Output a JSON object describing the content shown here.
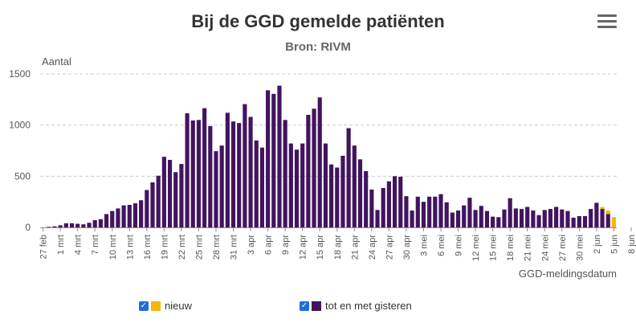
{
  "header": {
    "title": "Bij de GGD gemelde patiënten",
    "subtitle": "Bron: RIVM",
    "menu_icon": "hamburger-menu-icon"
  },
  "colors": {
    "nieuw": "#f6b60b",
    "tot_en_met_gisteren": "#42145f",
    "grid": "#cccccc",
    "checkbox": "#1e6fd9"
  },
  "legend": [
    {
      "label": "nieuw",
      "color": "#f6b60b",
      "checked": true
    },
    {
      "label": "tot en met gisteren",
      "color": "#42145f",
      "checked": true
    }
  ],
  "chart_data": {
    "type": "bar",
    "stacked": true,
    "title": "Bij de GGD gemelde patiënten",
    "subtitle": "Bron: RIVM",
    "ylabel": "Aantal",
    "xlabel": "GGD-meldingsdatum",
    "ylim": [
      0,
      1500
    ],
    "yticks": [
      0,
      500,
      1000,
      1500
    ],
    "grid": true,
    "legend_position": "bottom",
    "x_tick_labels": [
      "27 feb",
      "1 mrt",
      "4 mrt",
      "7 mrt",
      "10 mrt",
      "13 mrt",
      "16 mrt",
      "19 mrt",
      "22 mrt",
      "25 mrt",
      "28 mrt",
      "31 mrt",
      "3 apr",
      "6 apr",
      "9 apr",
      "12 apr",
      "15 apr",
      "18 apr",
      "21 apr",
      "24 apr",
      "27 apr",
      "30 apr",
      "3 mei",
      "6 mei",
      "9 mei",
      "12 mei",
      "15 mei",
      "18 mei",
      "21 mei",
      "24 mei",
      "27 mei",
      "30 mei",
      "2 jun",
      "5 jun",
      "8 jun"
    ],
    "series": [
      {
        "name": "tot en met gisteren",
        "values": [
          0,
          5,
          10,
          20,
          40,
          40,
          35,
          30,
          45,
          70,
          80,
          130,
          160,
          185,
          215,
          220,
          235,
          265,
          365,
          440,
          505,
          690,
          660,
          540,
          620,
          1115,
          1045,
          1050,
          1165,
          990,
          745,
          800,
          1120,
          1035,
          1020,
          1205,
          1080,
          850,
          780,
          1340,
          1305,
          1385,
          1050,
          820,
          760,
          820,
          1100,
          1160,
          1270,
          820,
          615,
          585,
          700,
          970,
          800,
          665,
          550,
          370,
          170,
          385,
          450,
          500,
          495,
          305,
          165,
          300,
          250,
          300,
          300,
          325,
          245,
          145,
          165,
          215,
          290,
          170,
          210,
          160,
          105,
          100,
          175,
          285,
          185,
          180,
          200,
          165,
          120,
          170,
          180,
          200,
          175,
          160,
          95,
          110,
          110,
          180,
          240,
          180,
          130,
          0
        ]
      },
      {
        "name": "nieuw",
        "values": [
          0,
          0,
          0,
          0,
          0,
          0,
          0,
          0,
          0,
          0,
          0,
          0,
          0,
          0,
          0,
          0,
          0,
          0,
          0,
          0,
          0,
          0,
          0,
          0,
          0,
          0,
          0,
          0,
          0,
          0,
          0,
          0,
          0,
          0,
          0,
          0,
          0,
          0,
          0,
          0,
          0,
          0,
          0,
          0,
          0,
          0,
          0,
          0,
          0,
          0,
          0,
          0,
          0,
          0,
          0,
          0,
          0,
          0,
          0,
          0,
          0,
          0,
          0,
          0,
          0,
          0,
          0,
          0,
          0,
          0,
          0,
          0,
          0,
          0,
          0,
          0,
          0,
          0,
          0,
          0,
          0,
          0,
          0,
          0,
          0,
          0,
          0,
          0,
          0,
          0,
          0,
          0,
          0,
          0,
          0,
          0,
          0,
          20,
          35,
          100
        ]
      }
    ]
  }
}
